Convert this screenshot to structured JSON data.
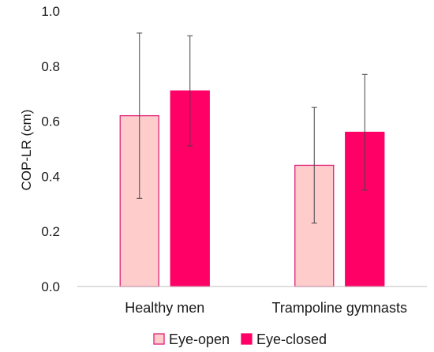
{
  "chart_data": {
    "type": "bar",
    "title": "",
    "xlabel": "",
    "ylabel": "COP-LR (cm)",
    "ylim": [
      0,
      1.0
    ],
    "yticks": [
      "0.0",
      "0.2",
      "0.4",
      "0.6",
      "0.8",
      "1.0"
    ],
    "grid": false,
    "legend_position": "bottom",
    "categories": [
      "Healthy men",
      "Trampoline gymnasts"
    ],
    "series": [
      {
        "name": "Eye-open",
        "color": "#ffcccc",
        "stroke": "#e0217a",
        "values": [
          0.62,
          0.44
        ],
        "error_low": [
          0.32,
          0.23
        ],
        "error_high": [
          0.92,
          0.65
        ]
      },
      {
        "name": "Eye-closed",
        "color": "#ff0066",
        "stroke": "#ff0066",
        "values": [
          0.71,
          0.56
        ],
        "error_low": [
          0.51,
          0.35
        ],
        "error_high": [
          0.91,
          0.77
        ]
      }
    ]
  }
}
